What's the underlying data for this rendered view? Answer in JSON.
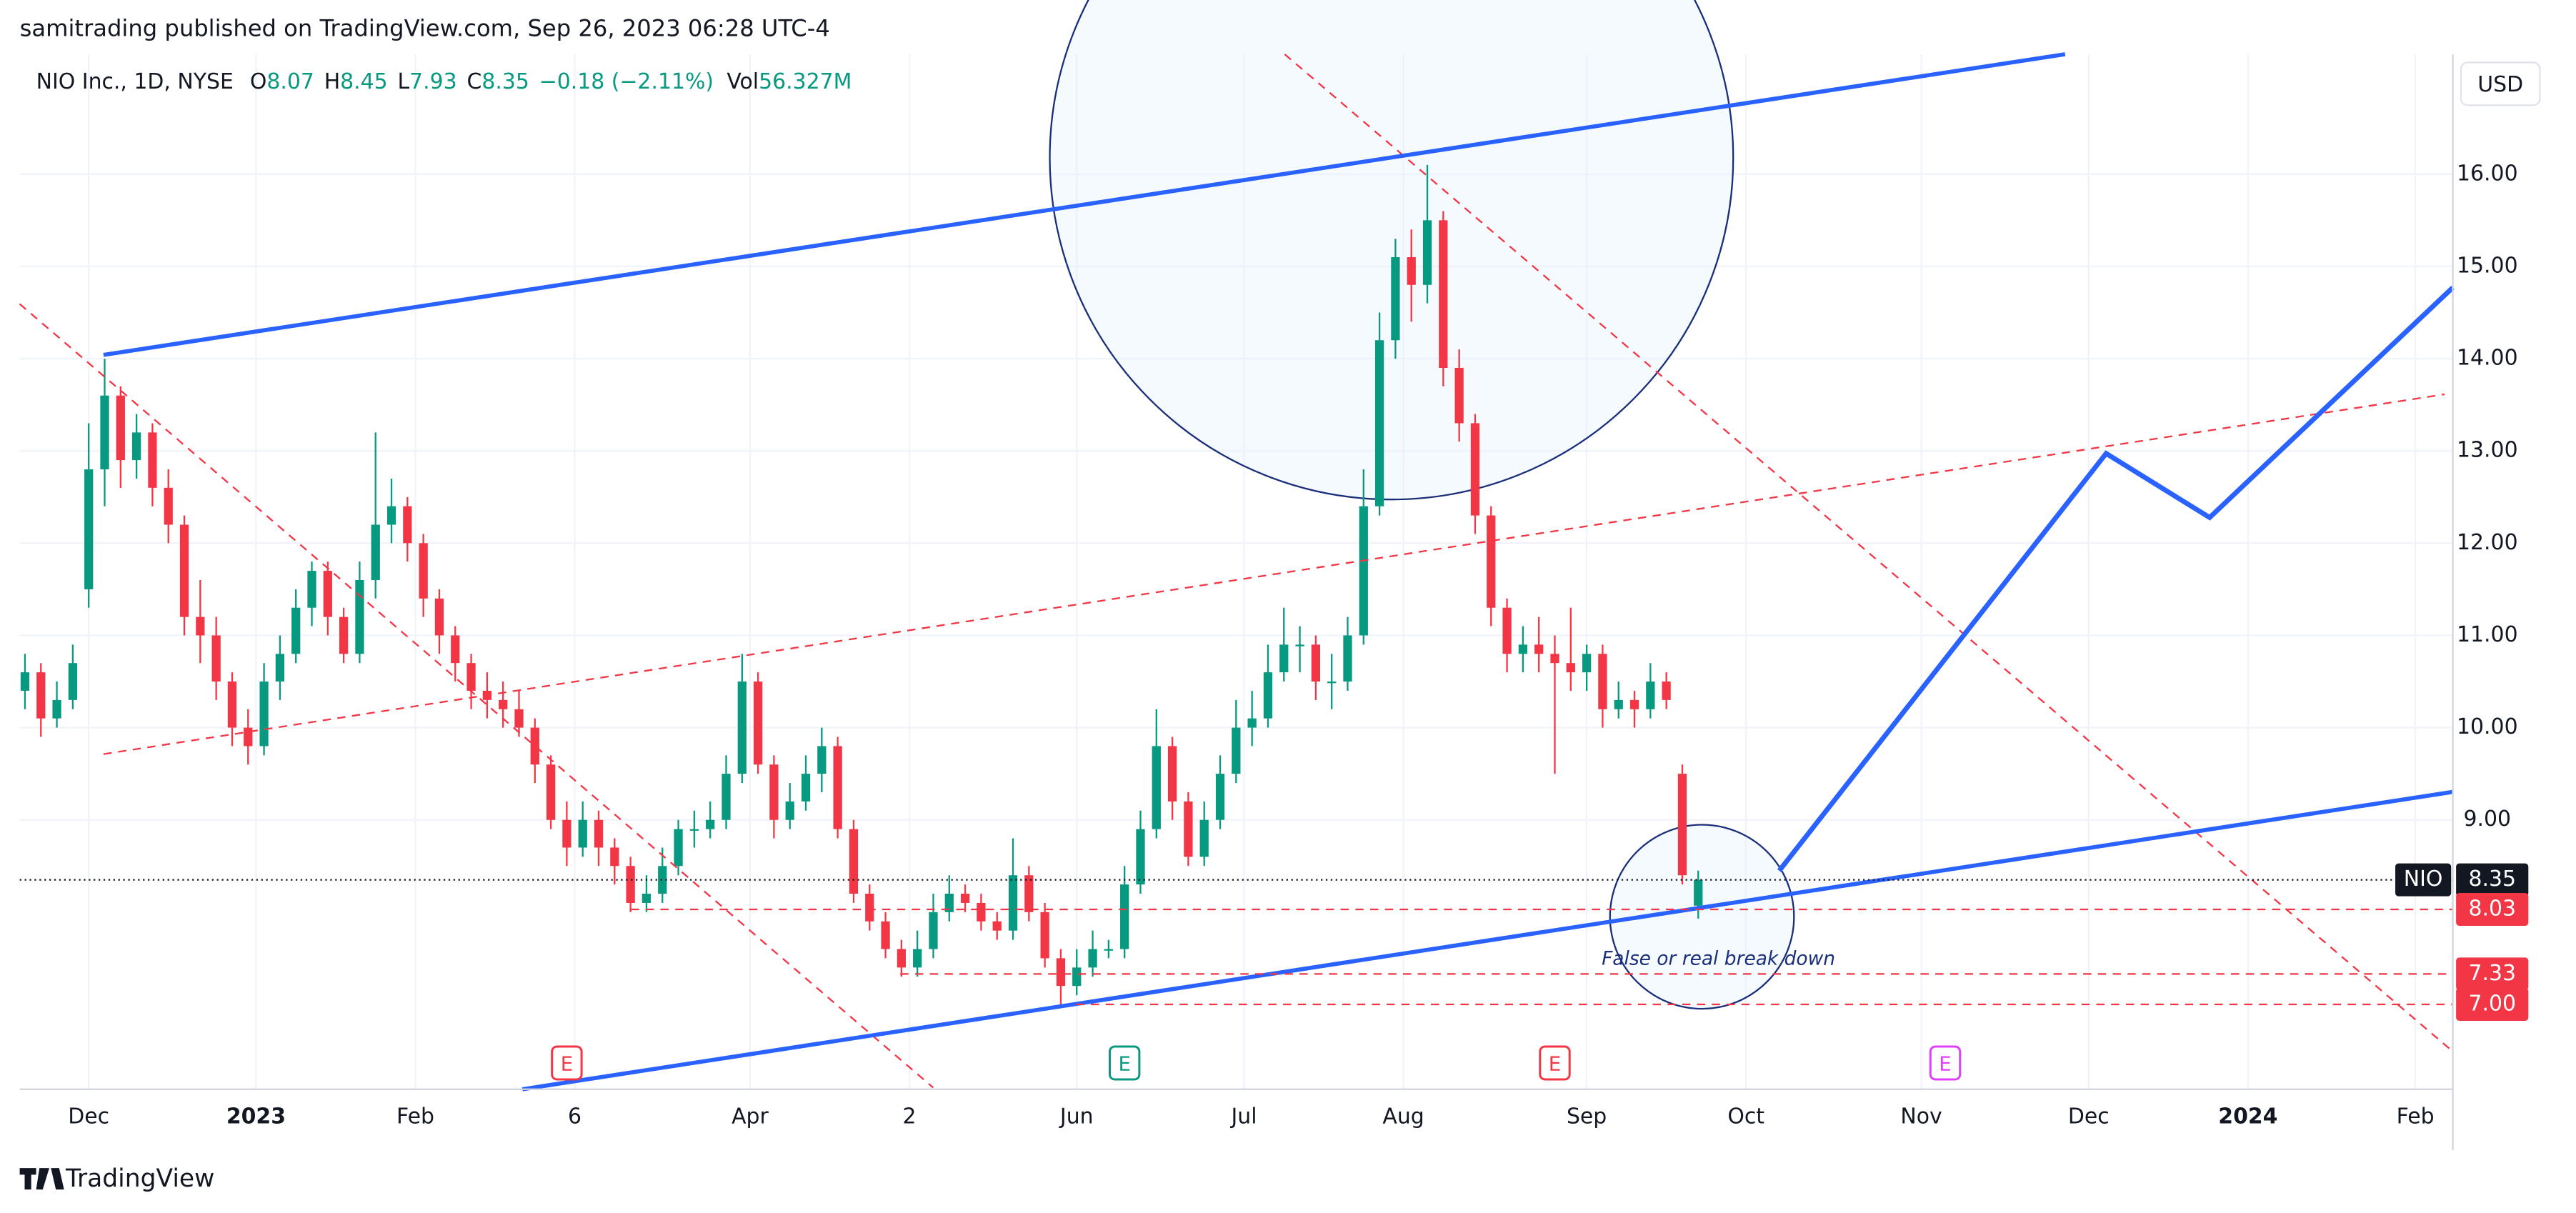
{
  "header": {
    "publisher": "samitrading published on TradingView.com, Sep 26, 2023 06:28 UTC-4",
    "brand": "TradingView"
  },
  "chart_data": {
    "type": "candlestick",
    "symbol": "NIO Inc., 1D, NYSE",
    "legend_labels": {
      "open": "O",
      "high": "H",
      "low": "L",
      "close": "C",
      "volume": "Vol"
    },
    "change": "−0.18 (−2.11%)",
    "volume": "56.327M",
    "currency": "USD",
    "last_price_tag": "NIO",
    "x": [
      -8,
      -6,
      -4,
      -2,
      0,
      2,
      4,
      6,
      8,
      10,
      12,
      14,
      16,
      18,
      20,
      22,
      24,
      26,
      28,
      30,
      32,
      34,
      36,
      38,
      40,
      42,
      44,
      46,
      48,
      50,
      52,
      54,
      56,
      58,
      60,
      62,
      64,
      66,
      68,
      70,
      72,
      74,
      76,
      78,
      80,
      82,
      84,
      86,
      88,
      90,
      92,
      94,
      96,
      98,
      100,
      102,
      104,
      106,
      108,
      110,
      112,
      114,
      116,
      118,
      120,
      122,
      124,
      126,
      128,
      130,
      132,
      134,
      136,
      138,
      140,
      142,
      144,
      146,
      148,
      150,
      152,
      154,
      156,
      158,
      160,
      162,
      164,
      166,
      168,
      170,
      172,
      174,
      176,
      178,
      180,
      182,
      184,
      186,
      188,
      190,
      192,
      194,
      196,
      198,
      200,
      202
    ],
    "open": [
      10.4,
      10.6,
      10.1,
      10.3,
      11.5,
      12.8,
      13.6,
      12.9,
      13.2,
      12.6,
      12.2,
      11.2,
      11.0,
      10.5,
      10.0,
      9.8,
      10.5,
      10.8,
      11.3,
      11.7,
      11.2,
      10.8,
      11.6,
      12.2,
      12.4,
      12.0,
      11.4,
      11.0,
      10.7,
      10.4,
      10.3,
      10.2,
      10.0,
      9.6,
      9.0,
      8.7,
      9.0,
      8.7,
      8.5,
      8.1,
      8.2,
      8.5,
      8.9,
      8.9,
      9.0,
      9.5,
      10.5,
      9.6,
      9.0,
      9.2,
      9.5,
      9.8,
      8.9,
      8.2,
      7.9,
      7.6,
      7.4,
      7.6,
      8.0,
      8.2,
      8.1,
      7.9,
      7.8,
      8.4,
      8.0,
      7.5,
      7.2,
      7.4,
      7.6,
      7.6,
      8.3,
      8.9,
      9.8,
      9.2,
      8.6,
      9.0,
      9.5,
      10.0,
      10.1,
      10.6,
      10.9,
      10.9,
      10.5,
      10.5,
      11.0,
      12.4,
      14.2,
      15.1,
      14.8,
      15.5,
      13.9,
      13.3,
      12.3,
      11.3,
      10.8,
      10.9,
      10.8,
      10.7,
      10.6,
      10.8,
      10.2,
      10.3,
      10.2,
      10.5,
      9.5,
      8.07
    ],
    "high": [
      10.8,
      10.7,
      10.5,
      10.9,
      13.3,
      14.0,
      13.7,
      13.4,
      13.3,
      12.8,
      12.3,
      11.6,
      11.2,
      10.6,
      10.2,
      10.7,
      11.0,
      11.5,
      11.8,
      11.8,
      11.3,
      11.8,
      13.2,
      12.7,
      12.5,
      12.1,
      11.5,
      11.1,
      10.8,
      10.6,
      10.5,
      10.4,
      10.1,
      9.7,
      9.2,
      9.2,
      9.1,
      8.8,
      8.6,
      8.4,
      8.7,
      9.0,
      9.1,
      9.2,
      9.7,
      10.8,
      10.6,
      9.7,
      9.4,
      9.7,
      10.0,
      9.9,
      9.0,
      8.3,
      8.0,
      7.7,
      7.8,
      8.2,
      8.4,
      8.3,
      8.2,
      8.0,
      8.8,
      8.5,
      8.1,
      7.6,
      7.6,
      7.8,
      7.7,
      8.5,
      9.1,
      10.2,
      9.9,
      9.3,
      9.2,
      9.7,
      10.3,
      10.4,
      10.9,
      11.3,
      11.1,
      11.0,
      10.8,
      11.2,
      12.8,
      14.5,
      15.3,
      15.4,
      16.1,
      15.6,
      14.1,
      13.4,
      12.4,
      11.4,
      11.1,
      11.2,
      11.0,
      11.3,
      10.9,
      10.9,
      10.5,
      10.4,
      10.7,
      10.6,
      9.6,
      8.45
    ],
    "low": [
      10.2,
      9.9,
      10.0,
      10.2,
      11.3,
      12.4,
      12.6,
      12.7,
      12.4,
      12.0,
      11.0,
      10.7,
      10.3,
      9.8,
      9.6,
      9.7,
      10.3,
      10.7,
      11.1,
      11.0,
      10.7,
      10.7,
      11.4,
      12.0,
      11.8,
      11.2,
      10.8,
      10.5,
      10.2,
      10.1,
      10.0,
      9.9,
      9.4,
      8.9,
      8.5,
      8.6,
      8.5,
      8.3,
      8.0,
      8.0,
      8.1,
      8.4,
      8.7,
      8.8,
      8.9,
      9.4,
      9.5,
      8.8,
      8.9,
      9.1,
      9.3,
      8.8,
      8.1,
      7.8,
      7.5,
      7.3,
      7.3,
      7.5,
      7.9,
      8.0,
      7.8,
      7.7,
      7.7,
      7.9,
      7.4,
      7.0,
      7.1,
      7.3,
      7.5,
      7.5,
      8.2,
      8.8,
      9.0,
      8.5,
      8.5,
      8.9,
      9.4,
      9.8,
      10.0,
      10.5,
      10.6,
      10.3,
      10.2,
      10.4,
      10.9,
      12.3,
      14.0,
      14.4,
      14.6,
      13.7,
      13.1,
      12.1,
      11.1,
      10.6,
      10.6,
      10.6,
      9.5,
      10.4,
      10.4,
      10.0,
      10.1,
      10.0,
      10.1,
      10.2,
      8.3,
      7.93
    ],
    "close": [
      10.6,
      10.1,
      10.3,
      10.7,
      12.8,
      13.6,
      12.9,
      13.2,
      12.6,
      12.2,
      11.2,
      11.0,
      10.5,
      10.0,
      9.8,
      10.5,
      10.8,
      11.3,
      11.7,
      11.2,
      10.8,
      11.6,
      12.2,
      12.4,
      12.0,
      11.4,
      11.0,
      10.7,
      10.4,
      10.3,
      10.2,
      10.0,
      9.6,
      9.0,
      8.7,
      9.0,
      8.7,
      8.5,
      8.1,
      8.2,
      8.5,
      8.9,
      8.9,
      9.0,
      9.5,
      10.5,
      9.6,
      9.0,
      9.2,
      9.5,
      9.8,
      8.9,
      8.2,
      7.9,
      7.6,
      7.4,
      7.6,
      8.0,
      8.2,
      8.1,
      7.9,
      7.8,
      8.4,
      8.0,
      7.5,
      7.2,
      7.4,
      7.6,
      7.6,
      8.3,
      8.9,
      9.8,
      9.2,
      8.6,
      9.0,
      9.5,
      10.0,
      10.1,
      10.6,
      10.9,
      10.9,
      10.5,
      10.5,
      11.0,
      12.4,
      14.2,
      15.1,
      14.8,
      15.5,
      13.9,
      13.3,
      12.3,
      11.3,
      10.8,
      10.9,
      10.8,
      10.7,
      10.6,
      10.8,
      10.2,
      10.3,
      10.2,
      10.5,
      10.3,
      8.4,
      8.35
    ],
    "up_color": "#089981",
    "down_color": "#f23645",
    "xlim": [
      -8.66,
      296.7
    ],
    "ylim": [
      6.08,
      17.3
    ],
    "xticks": [
      {
        "value": 0,
        "label": "Dec"
      },
      {
        "value": 21,
        "label": "2023"
      },
      {
        "value": 41,
        "label": "Feb"
      },
      {
        "value": 61,
        "label": "6"
      },
      {
        "value": 83,
        "label": "Apr"
      },
      {
        "value": 103,
        "label": "2"
      },
      {
        "value": 124,
        "label": "Jun"
      },
      {
        "value": 145,
        "label": "Jul"
      },
      {
        "value": 165,
        "label": "Aug"
      },
      {
        "value": 188,
        "label": "Sep"
      },
      {
        "value": 208,
        "label": "Oct"
      },
      {
        "value": 230,
        "label": "Nov"
      },
      {
        "value": 251,
        "label": "Dec"
      },
      {
        "value": 271,
        "label": "2024"
      },
      {
        "value": 292,
        "label": "Feb"
      }
    ],
    "yticks": [
      {
        "value": 9,
        "label": "9.00"
      },
      {
        "value": 10,
        "label": "10.00"
      },
      {
        "value": 11,
        "label": "11.00"
      },
      {
        "value": 12,
        "label": "12.00"
      },
      {
        "value": 13,
        "label": "13.00"
      },
      {
        "value": 14,
        "label": "14.00"
      },
      {
        "value": 15,
        "label": "15.00"
      },
      {
        "value": 16,
        "label": "16.00"
      }
    ],
    "grid": true,
    "price_levels": [
      {
        "value": 8.03,
        "label": "8.03"
      },
      {
        "value": 7.33,
        "label": "7.33"
      },
      {
        "value": 7.0,
        "label": "7.00"
      }
    ],
    "annotations": [
      "False or real break down"
    ],
    "events": [
      {
        "x": 60,
        "label": "E",
        "color": "#f23645"
      },
      {
        "x": 130,
        "label": "E",
        "color": "#089981"
      },
      {
        "x": 184,
        "label": "E",
        "color": "#f23645"
      },
      {
        "x": 233,
        "label": "E",
        "color": "#e040fb"
      }
    ]
  }
}
